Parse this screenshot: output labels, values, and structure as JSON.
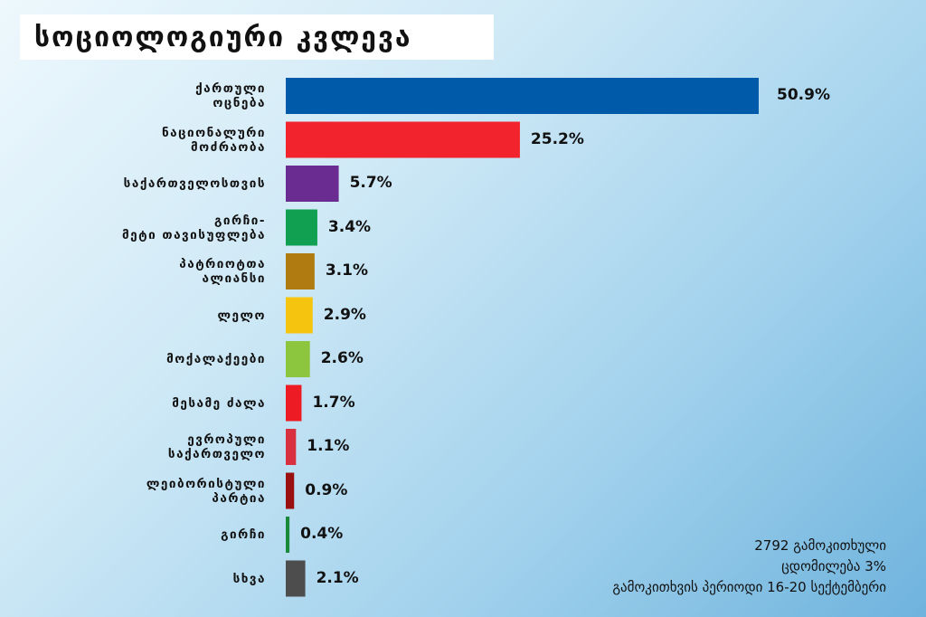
{
  "chart_data": {
    "type": "bar",
    "orientation": "horizontal",
    "title": "სოციოლოგიური კვლევა",
    "categories": [
      [
        "ქართული",
        "ოცნება"
      ],
      [
        "ნაციონალური",
        "მოძრაობა"
      ],
      [
        "საქართველოსთვის"
      ],
      [
        "გირჩი-",
        "მეტი თავისუფლება"
      ],
      [
        "პატრიოტთა",
        "ალიანსი"
      ],
      [
        "ლელო"
      ],
      [
        "მოქალაქეები"
      ],
      [
        "მესამე ძალა"
      ],
      [
        "ევროპული",
        "საქართველო"
      ],
      [
        "ლეიბორისტული",
        "პარტია"
      ],
      [
        "გირჩი"
      ],
      [
        "სხვა"
      ]
    ],
    "values": [
      50.9,
      25.2,
      5.7,
      3.4,
      3.1,
      2.9,
      2.6,
      1.7,
      1.1,
      0.9,
      0.4,
      2.1
    ],
    "value_labels": [
      "50.9%",
      "25.2%",
      "5.7%",
      "3.4%",
      "3.1%",
      "2.9%",
      "2.6%",
      "1.7%",
      "1.1%",
      "0.9%",
      "0.4%",
      "2.1%"
    ],
    "colors": [
      "#005aaa",
      "#f2232c",
      "#6b2c91",
      "#11a052",
      "#b07b10",
      "#f5c40f",
      "#8cc63f",
      "#ed1c24",
      "#d8303f",
      "#9a1010",
      "#1a8a3a",
      "#4d4d4d"
    ],
    "xlim": [
      0,
      50.9
    ],
    "grid": false,
    "legend": "none"
  },
  "notes": [
    "2792 გამოკითხული",
    "ცდომილება 3%",
    "გამოკითხვის პერიოდი 16-20 სექტემბერი"
  ]
}
